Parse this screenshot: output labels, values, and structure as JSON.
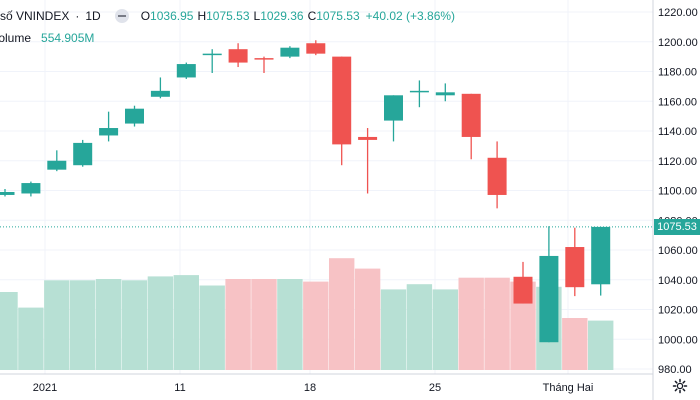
{
  "legend": {
    "symbol": "số VNINDEX",
    "timeframe": "1D",
    "open_label": "O",
    "open_value": "1036.95",
    "high_label": "H",
    "high_value": "1075.53",
    "low_label": "L",
    "low_value": "1029.36",
    "close_label": "C",
    "close_value": "1075.53",
    "change": "+40.02 (+3.86%)",
    "volume_label": "Volume",
    "volume_value": "554.905M"
  },
  "last_price_label": "1075.53",
  "colors": {
    "up": "#26a69a",
    "down": "#ef5350",
    "vol_up": "#b7e0d4",
    "vol_down": "#f7c2c5",
    "grid": "#f0f3fa",
    "last_price_line": "#26a69a"
  },
  "chart_data": {
    "type": "candlestick",
    "price_axis": {
      "min": 980,
      "max": 1220,
      "ticks": [
        "980.00",
        "1000.00",
        "1020.00",
        "1040.00",
        "1060.00",
        "1080.00",
        "1100.00",
        "1120.00",
        "1140.00",
        "1160.00",
        "1180.00",
        "1200.00",
        "1220.00"
      ]
    },
    "x_ticks": [
      "2021",
      "11",
      "18",
      "25",
      "Tháng Hai"
    ],
    "last_price": 1075.53,
    "candles": [
      {
        "o": 1097,
        "h": 1101,
        "l": 1096,
        "c": 1099,
        "vol_level": 0.6
      },
      {
        "o": 1098,
        "h": 1106,
        "l": 1096,
        "c": 1105,
        "vol_level": 0.48
      },
      {
        "o": 1114,
        "h": 1127,
        "l": 1113,
        "c": 1120,
        "vol_level": 0.69
      },
      {
        "o": 1117,
        "h": 1134,
        "l": 1116,
        "c": 1132,
        "vol_level": 0.69
      },
      {
        "o": 1137,
        "h": 1153,
        "l": 1133,
        "c": 1142,
        "vol_level": 0.7
      },
      {
        "o": 1145,
        "h": 1157,
        "l": 1143,
        "c": 1155,
        "vol_level": 0.69
      },
      {
        "o": 1163,
        "h": 1176,
        "l": 1162,
        "c": 1167,
        "vol_level": 0.72
      },
      {
        "o": 1176,
        "h": 1186,
        "l": 1175,
        "c": 1185,
        "vol_level": 0.73
      },
      {
        "o": 1191,
        "h": 1195,
        "l": 1179,
        "c": 1192,
        "vol_level": 0.65
      },
      {
        "o": 1195,
        "h": 1199,
        "l": 1183,
        "c": 1186,
        "vol_level": 0.7
      },
      {
        "o": 1189,
        "h": 1190,
        "l": 1179,
        "c": 1188,
        "vol_level": 0.7
      },
      {
        "o": 1190,
        "h": 1197,
        "l": 1189,
        "c": 1196,
        "vol_level": 0.7
      },
      {
        "o": 1199,
        "h": 1201,
        "l": 1191,
        "c": 1192,
        "vol_level": 0.68
      },
      {
        "o": 1190,
        "h": 1190,
        "l": 1117,
        "c": 1131,
        "vol_level": 0.86
      },
      {
        "o": 1136,
        "h": 1142,
        "l": 1098,
        "c": 1134,
        "vol_level": 0.78
      },
      {
        "o": 1147,
        "h": 1164,
        "l": 1133,
        "c": 1164,
        "vol_level": 0.62
      },
      {
        "o": 1166,
        "h": 1174,
        "l": 1156,
        "c": 1167,
        "vol_level": 0.66
      },
      {
        "o": 1164,
        "h": 1172,
        "l": 1160,
        "c": 1166,
        "vol_level": 0.62
      },
      {
        "o": 1165,
        "h": 1165,
        "l": 1121,
        "c": 1136,
        "vol_level": 0.71
      },
      {
        "o": 1122,
        "h": 1133,
        "l": 1088,
        "c": 1097,
        "vol_level": 0.71
      },
      {
        "o": 1042,
        "h": 1052,
        "l": 1024,
        "c": 1024,
        "vol_level": 0.68
      },
      {
        "o": 998,
        "h": 1076,
        "l": 998,
        "c": 1056,
        "vol_level": 0.64
      },
      {
        "o": 1062,
        "h": 1075,
        "l": 1029,
        "c": 1035,
        "vol_level": 0.4
      },
      {
        "o": 1036.95,
        "h": 1075.53,
        "l": 1029.36,
        "c": 1075.53,
        "vol_level": 0.38
      }
    ]
  }
}
